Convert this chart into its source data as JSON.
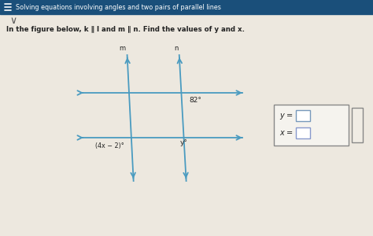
{
  "title": "Solving equations involving angles and two pairs of parallel lines",
  "problem_text": "In the figure below, k ∥ l and m ∥ n. Find the values of y and x.",
  "bg_color_header": "#1a4f7a",
  "bg_color_body": "#ede8df",
  "line_color": "#4a9bc0",
  "text_color_header": "#ffffff",
  "text_color_body": "#222222",
  "angle_82": "82°",
  "angle_y": "y°",
  "angle_4x2": "(4x − 2)°",
  "label_m": "m",
  "label_n": "n",
  "answer_box_border": "#888888",
  "input_box_border": "#7799bb",
  "chevron": "∨"
}
